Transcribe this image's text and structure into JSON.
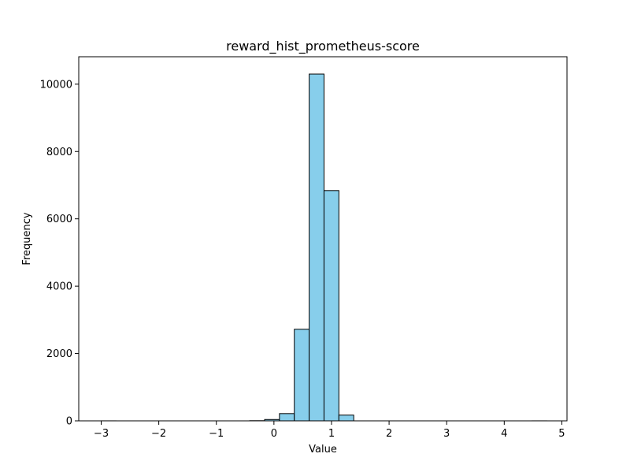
{
  "chart_data": {
    "type": "bar",
    "title": "reward_hist_prometheus-score",
    "xlabel": "Value",
    "ylabel": "Frequency",
    "xlim": [
      -3.39,
      5.09
    ],
    "ylim": [
      0,
      10815
    ],
    "xticks": [
      -3,
      -2,
      -1,
      0,
      1,
      2,
      3,
      4,
      5
    ],
    "yticks": [
      0,
      2000,
      4000,
      6000,
      8000,
      10000
    ],
    "bin_width": 0.258,
    "bins": [
      {
        "x0": -3.0,
        "x1": -2.742,
        "count": 1
      },
      {
        "x0": -2.742,
        "x1": -2.484,
        "count": 0
      },
      {
        "x0": -2.484,
        "x1": -2.226,
        "count": 0
      },
      {
        "x0": -2.226,
        "x1": -1.968,
        "count": 0
      },
      {
        "x0": -1.968,
        "x1": -1.71,
        "count": 0
      },
      {
        "x0": -1.71,
        "x1": -1.452,
        "count": 0
      },
      {
        "x0": -1.452,
        "x1": -1.194,
        "count": 0
      },
      {
        "x0": -1.194,
        "x1": -0.936,
        "count": 0
      },
      {
        "x0": -0.936,
        "x1": -0.678,
        "count": 0
      },
      {
        "x0": -0.678,
        "x1": -0.42,
        "count": 0
      },
      {
        "x0": -0.42,
        "x1": -0.162,
        "count": 5
      },
      {
        "x0": -0.162,
        "x1": 0.096,
        "count": 40
      },
      {
        "x0": 0.096,
        "x1": 0.354,
        "count": 215
      },
      {
        "x0": 0.354,
        "x1": 0.612,
        "count": 2720
      },
      {
        "x0": 0.612,
        "x1": 0.87,
        "count": 10300
      },
      {
        "x0": 0.87,
        "x1": 1.128,
        "count": 6840
      },
      {
        "x0": 1.128,
        "x1": 1.386,
        "count": 170
      },
      {
        "x0": 1.386,
        "x1": 1.644,
        "count": 0
      },
      {
        "x0": 1.644,
        "x1": 1.902,
        "count": 0
      },
      {
        "x0": 1.902,
        "x1": 2.16,
        "count": 0
      },
      {
        "x0": 2.16,
        "x1": 2.418,
        "count": 0
      },
      {
        "x0": 2.418,
        "x1": 2.676,
        "count": 0
      },
      {
        "x0": 2.676,
        "x1": 2.934,
        "count": 0
      },
      {
        "x0": 2.934,
        "x1": 3.192,
        "count": 0
      },
      {
        "x0": 3.192,
        "x1": 3.45,
        "count": 0
      },
      {
        "x0": 3.45,
        "x1": 3.708,
        "count": 0
      },
      {
        "x0": 3.708,
        "x1": 3.966,
        "count": 0
      },
      {
        "x0": 3.966,
        "x1": 4.224,
        "count": 0
      },
      {
        "x0": 4.224,
        "x1": 4.482,
        "count": 0
      },
      {
        "x0": 4.482,
        "x1": 4.74,
        "count": 1
      }
    ],
    "bar_color": "#87ceeb",
    "edge_color": "#000000",
    "grid": false,
    "legend": "none"
  }
}
